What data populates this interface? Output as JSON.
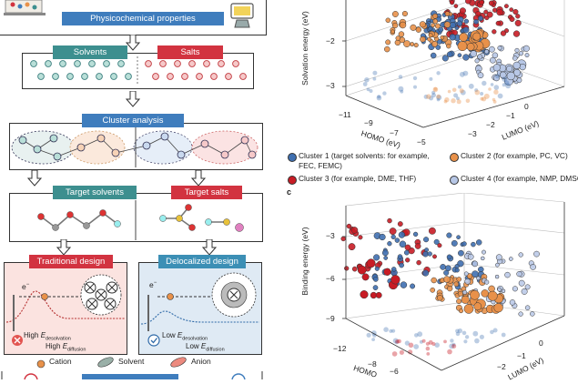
{
  "workflow": {
    "physchem_label": "Physicochemical properties",
    "solvents_label": "Solvents",
    "salts_label": "Salts",
    "cluster_label": "Cluster analysis",
    "target_solvents_label": "Target solvents",
    "target_salts_label": "Target salts",
    "traditional_label": "Traditional design",
    "delocalized_label": "Delocalized design",
    "electron_symbol": "e",
    "electron_sup": "−",
    "high_prefix": "High ",
    "low_prefix": "Low ",
    "e_symbol": "E",
    "desolvation_sub": "desolvation",
    "diffusion_sub": "diffusion",
    "legend_cation": "Cation",
    "legend_solvent": "Solvent",
    "legend_anion": "Anion"
  },
  "plot_b": {
    "ylabel": "Solvation energy (eV)",
    "xlabel_homo": "HOMO (eV)",
    "xlabel_lumo": "LUMO (eV)",
    "yticks": [
      "−2",
      "−3"
    ],
    "homo_ticks": [
      "−11",
      "−9",
      "−7",
      "−5"
    ],
    "lumo_ticks": [
      "0",
      "−1",
      "−2",
      "−3"
    ]
  },
  "legend": {
    "cluster1_line1": "Cluster 1 (target solvents: for example,",
    "cluster1_line2": "FEC, FEMC)",
    "cluster2": "Cluster 2 (for example, PC, VC)",
    "cluster3": "Cluster 3 (for example, DME, THF)",
    "cluster4": "Cluster 4 (for example, NMP, DMSO)",
    "colors": {
      "cluster1": "#3f6fb0",
      "cluster2": "#e8914a",
      "cluster3": "#c81c25",
      "cluster4": "#b7c7e6"
    }
  },
  "plot_c": {
    "panel_label": "c",
    "ylabel": "Binding energy (eV)",
    "xlabel_homo": "HOMO",
    "xlabel_lumo": "LUMO (eV)",
    "yticks": [
      "−3",
      "−6",
      "−9"
    ],
    "homo_ticks": [
      "−12",
      "−8",
      "−6"
    ],
    "lumo_ticks": [
      "0",
      "−1",
      "−2"
    ]
  }
}
